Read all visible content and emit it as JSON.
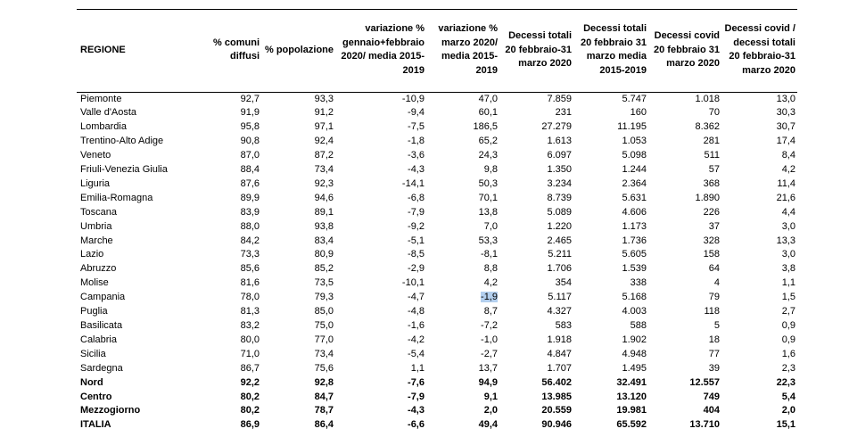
{
  "headers": [
    "REGIONE",
    "% comuni diffusi",
    "% popolazione",
    "variazione % gennaio+febbraio 2020/ media 2015-2019",
    "variazione % marzo 2020/ media 2015-2019",
    "Decessi totali 20 febbraio-31 marzo 2020",
    "Decessi totali 20 febbraio 31 marzo media 2015-2019",
    "Decessi covid 20 febbraio 31 marzo 2020",
    "Decessi covid / decessi totali 20 febbraio-31 marzo 2020"
  ],
  "rows": [
    {
      "cells": [
        "Piemonte",
        "92,7",
        "93,3",
        "-10,9",
        "47,0",
        "7.859",
        "5.747",
        "1.018",
        "13,0"
      ],
      "bold": false
    },
    {
      "cells": [
        "Valle d'Aosta",
        "91,9",
        "91,2",
        "-9,4",
        "60,1",
        "231",
        "160",
        "70",
        "30,3"
      ],
      "bold": false
    },
    {
      "cells": [
        "Lombardia",
        "95,8",
        "97,1",
        "-7,5",
        "186,5",
        "27.279",
        "11.195",
        "8.362",
        "30,7"
      ],
      "bold": false
    },
    {
      "cells": [
        "Trentino-Alto Adige",
        "90,8",
        "92,4",
        "-1,8",
        "65,2",
        "1.613",
        "1.053",
        "281",
        "17,4"
      ],
      "bold": false
    },
    {
      "cells": [
        "Veneto",
        "87,0",
        "87,2",
        "-3,6",
        "24,3",
        "6.097",
        "5.098",
        "511",
        "8,4"
      ],
      "bold": false
    },
    {
      "cells": [
        "Friuli-Venezia Giulia",
        "88,4",
        "73,4",
        "-4,3",
        "9,8",
        "1.350",
        "1.244",
        "57",
        "4,2"
      ],
      "bold": false
    },
    {
      "cells": [
        "Liguria",
        "87,6",
        "92,3",
        "-14,1",
        "50,3",
        "3.234",
        "2.364",
        "368",
        "11,4"
      ],
      "bold": false
    },
    {
      "cells": [
        "Emilia-Romagna",
        "89,9",
        "94,6",
        "-6,8",
        "70,1",
        "8.739",
        "5.631",
        "1.890",
        "21,6"
      ],
      "bold": false
    },
    {
      "cells": [
        "Toscana",
        "83,9",
        "89,1",
        "-7,9",
        "13,8",
        "5.089",
        "4.606",
        "226",
        "4,4"
      ],
      "bold": false
    },
    {
      "cells": [
        "Umbria",
        "88,0",
        "93,8",
        "-9,2",
        "7,0",
        "1.220",
        "1.173",
        "37",
        "3,0"
      ],
      "bold": false
    },
    {
      "cells": [
        "Marche",
        "84,2",
        "83,4",
        "-5,1",
        "53,3",
        "2.465",
        "1.736",
        "328",
        "13,3"
      ],
      "bold": false
    },
    {
      "cells": [
        "Lazio",
        "73,3",
        "80,9",
        "-8,5",
        "-8,1",
        "5.211",
        "5.605",
        "158",
        "3,0"
      ],
      "bold": false
    },
    {
      "cells": [
        "Abruzzo",
        "85,6",
        "85,2",
        "-2,9",
        "8,8",
        "1.706",
        "1.539",
        "64",
        "3,8"
      ],
      "bold": false
    },
    {
      "cells": [
        "Molise",
        "81,6",
        "73,5",
        "-10,1",
        "4,2",
        "354",
        "338",
        "4",
        "1,1"
      ],
      "bold": false
    },
    {
      "cells": [
        "Campania",
        "78,0",
        "79,3",
        "-4,7",
        "-1,9",
        "5.117",
        "5.168",
        "79",
        "1,5"
      ],
      "bold": false,
      "highlight": 4
    },
    {
      "cells": [
        "Puglia",
        "81,3",
        "85,0",
        "-4,8",
        "8,7",
        "4.327",
        "4.003",
        "118",
        "2,7"
      ],
      "bold": false
    },
    {
      "cells": [
        "Basilicata",
        "83,2",
        "75,0",
        "-1,6",
        "-7,2",
        "583",
        "588",
        "5",
        "0,9"
      ],
      "bold": false
    },
    {
      "cells": [
        "Calabria",
        "80,0",
        "77,0",
        "-4,2",
        "-1,0",
        "1.918",
        "1.902",
        "18",
        "0,9"
      ],
      "bold": false
    },
    {
      "cells": [
        "Sicilia",
        "71,0",
        "73,4",
        "-5,4",
        "-2,7",
        "4.847",
        "4.948",
        "77",
        "1,6"
      ],
      "bold": false
    },
    {
      "cells": [
        "Sardegna",
        "86,7",
        "75,6",
        "1,1",
        "13,7",
        "1.707",
        "1.495",
        "39",
        "2,3"
      ],
      "bold": false
    },
    {
      "cells": [
        "Nord",
        "92,2",
        "92,8",
        "-7,6",
        "94,9",
        "56.402",
        "32.491",
        "12.557",
        "22,3"
      ],
      "bold": true
    },
    {
      "cells": [
        "Centro",
        "80,2",
        "84,7",
        "-7,9",
        "9,1",
        "13.985",
        "13.120",
        "749",
        "5,4"
      ],
      "bold": true
    },
    {
      "cells": [
        "Mezzogiorno",
        "80,2",
        "78,7",
        "-4,3",
        "2,0",
        "20.559",
        "19.981",
        "404",
        "2,0"
      ],
      "bold": true
    },
    {
      "cells": [
        "ITALIA",
        "86,9",
        "86,4",
        "-6,6",
        "49,4",
        "90.946",
        "65.592",
        "13.710",
        "15,1"
      ],
      "bold": true
    }
  ]
}
